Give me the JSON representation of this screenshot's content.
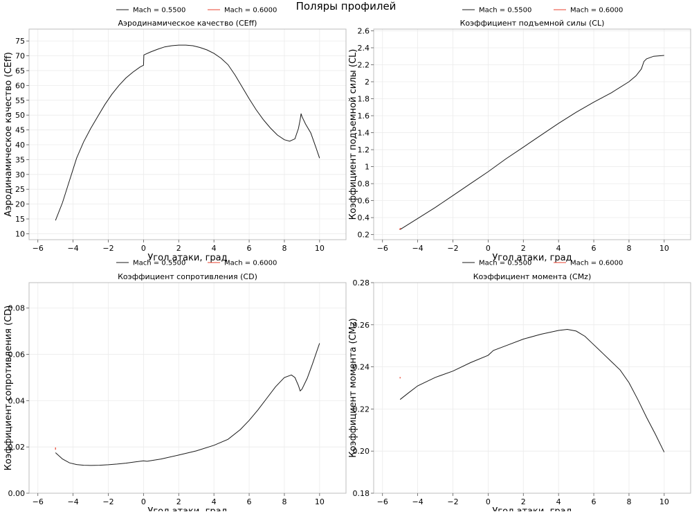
{
  "figure_title": "Поляры профилей",
  "legend": {
    "entries": [
      {
        "label": "Mach = 0.5500",
        "color": "#1a1a1a"
      },
      {
        "label": "Mach = 0.6000",
        "color": "#e8412c"
      }
    ]
  },
  "chart_data": [
    {
      "type": "line",
      "title": "Аэродинамическое качество (CEff)",
      "xlabel": "Угол атаки, град",
      "ylabel": "Аэродинамическое качество (CEff)",
      "xlim": [
        -6.5,
        11.5
      ],
      "ylim": [
        8,
        79
      ],
      "xticks": [
        -6,
        -4,
        -2,
        0,
        2,
        4,
        6,
        8,
        10
      ],
      "yticks": [
        10,
        15,
        20,
        25,
        30,
        35,
        40,
        45,
        50,
        55,
        60,
        65,
        70,
        75
      ],
      "grid": true,
      "legend_position": "top-center",
      "series": [
        {
          "name": "Mach = 0.5500",
          "color": "#1a1a1a",
          "x": [
            -5,
            -4.6,
            -4.2,
            -3.8,
            -3.4,
            -3.0,
            -2.6,
            -2.2,
            -1.8,
            -1.4,
            -1.0,
            -0.6,
            -0.2,
            0.0,
            0.02,
            0.4,
            0.8,
            1.2,
            1.6,
            2.0,
            2.4,
            2.8,
            3.2,
            3.6,
            4.0,
            4.4,
            4.8,
            5.2,
            5.6,
            6.0,
            6.4,
            6.8,
            7.2,
            7.6,
            8.0,
            8.3,
            8.6,
            8.8,
            8.9,
            8.95,
            9.0,
            9.2,
            9.5,
            9.8,
            10.0
          ],
          "y": [
            14.5,
            20.5,
            28.0,
            35.5,
            41.0,
            45.5,
            49.5,
            53.5,
            57.0,
            60.0,
            62.5,
            64.5,
            66.2,
            66.8,
            70.3,
            71.3,
            72.2,
            73.0,
            73.4,
            73.6,
            73.6,
            73.4,
            72.8,
            72.0,
            70.8,
            69.2,
            67.0,
            63.5,
            59.5,
            55.5,
            51.8,
            48.5,
            45.7,
            43.3,
            41.7,
            41.2,
            42.0,
            45.5,
            48.5,
            50.5,
            49.5,
            47.0,
            44.0,
            39.0,
            35.5
          ]
        },
        {
          "name": "Mach = 0.6000",
          "color": "#e8412c",
          "x": [],
          "y": []
        }
      ]
    },
    {
      "type": "line",
      "title": "Коэффициент подъемной силы (CL)",
      "xlabel": "Угол атаки, град",
      "ylabel": "Коэффициент подъемной силы (CL)",
      "xlim": [
        -6.5,
        11.5
      ],
      "ylim": [
        0.14,
        2.62
      ],
      "xticks": [
        -6,
        -4,
        -2,
        0,
        2,
        4,
        6,
        8,
        10
      ],
      "yticks": [
        0.2,
        0.4,
        0.6,
        0.8,
        1.0,
        1.2,
        1.4,
        1.6,
        1.8,
        2.0,
        2.2,
        2.4,
        2.6
      ],
      "grid": true,
      "legend_position": "top-center",
      "series": [
        {
          "name": "Mach = 0.5500",
          "color": "#1a1a1a",
          "x": [
            -5,
            -4,
            -3,
            -2,
            -1,
            0,
            1,
            2,
            3,
            4,
            5,
            6,
            7,
            8,
            8.4,
            8.7,
            8.85,
            9.0,
            9.4,
            10.0
          ],
          "y": [
            0.26,
            0.39,
            0.52,
            0.66,
            0.8,
            0.94,
            1.09,
            1.23,
            1.37,
            1.51,
            1.64,
            1.76,
            1.87,
            2.0,
            2.07,
            2.15,
            2.24,
            2.27,
            2.3,
            2.31
          ]
        },
        {
          "name": "Mach = 0.6000",
          "color": "#e8412c",
          "x": [
            -5.05,
            -4.95
          ],
          "y": [
            0.26,
            0.275
          ]
        }
      ]
    },
    {
      "type": "line",
      "title": "Коэффициент сопротивления (CD)",
      "xlabel": "Угол атаки, град",
      "ylabel": "Коэффициент сопротивления (CD)",
      "xlim": [
        -6.5,
        11.5
      ],
      "ylim": [
        0.0,
        0.091
      ],
      "xticks": [
        -6,
        -4,
        -2,
        0,
        2,
        4,
        6,
        8,
        10
      ],
      "yticks": [
        0.0,
        0.02,
        0.04,
        0.06,
        0.08
      ],
      "ytick_labels": [
        "0.00",
        "0.02",
        "0.04",
        "0.06",
        "0.08"
      ],
      "grid": true,
      "legend_position": "top-center",
      "series": [
        {
          "name": "Mach = 0.5500",
          "color": "#1a1a1a",
          "x": [
            -5,
            -4.6,
            -4.2,
            -3.8,
            -3.4,
            -3.0,
            -2.5,
            -2.0,
            -1.5,
            -1.0,
            -0.5,
            0.0,
            0.2,
            1.0,
            2.0,
            3.0,
            4.0,
            4.8,
            5.5,
            6.0,
            6.5,
            7.0,
            7.5,
            8.0,
            8.4,
            8.6,
            8.8,
            8.9,
            9.0,
            9.3,
            9.6,
            10.0
          ],
          "y": [
            0.0175,
            0.0148,
            0.0131,
            0.0124,
            0.0121,
            0.012,
            0.0121,
            0.0123,
            0.0126,
            0.013,
            0.0135,
            0.014,
            0.0138,
            0.0148,
            0.0165,
            0.0183,
            0.0207,
            0.0233,
            0.0275,
            0.0315,
            0.036,
            0.041,
            0.046,
            0.05,
            0.0511,
            0.05,
            0.0465,
            0.0442,
            0.045,
            0.0497,
            0.056,
            0.0648
          ]
        },
        {
          "name": "Mach = 0.6000",
          "color": "#e8412c",
          "x": [
            -5.0,
            -5.0
          ],
          "y": [
            0.0188,
            0.0198
          ]
        }
      ]
    },
    {
      "type": "line",
      "title": "Коэффициент момента (CMz)",
      "xlabel": "Угол атаки, град",
      "ylabel": "Коэффициент момента (CMz)",
      "xlim": [
        -6.5,
        11.5
      ],
      "ylim": [
        0.18,
        0.28
      ],
      "xticks": [
        -6,
        -4,
        -2,
        0,
        2,
        4,
        6,
        8,
        10
      ],
      "yticks": [
        0.18,
        0.2,
        0.22,
        0.24,
        0.26,
        0.28
      ],
      "ytick_labels": [
        "0.18",
        "0.20",
        "0.22",
        "0.24",
        "0.26",
        "0.28"
      ],
      "grid": true,
      "legend_position": "top-center",
      "series": [
        {
          "name": "Mach = 0.5500",
          "color": "#1a1a1a",
          "x": [
            -5,
            -4.5,
            -4.0,
            -3.5,
            -3.0,
            -2.0,
            -1.0,
            0.0,
            0.3,
            1.0,
            2.0,
            3.0,
            4.0,
            4.5,
            5.0,
            5.5,
            6.0,
            6.5,
            7.0,
            7.5,
            8.0,
            8.5,
            9.0,
            9.5,
            10.0
          ],
          "y": [
            0.2245,
            0.2278,
            0.231,
            0.233,
            0.235,
            0.238,
            0.242,
            0.2455,
            0.2478,
            0.25,
            0.2532,
            0.2555,
            0.2573,
            0.2578,
            0.257,
            0.2545,
            0.2505,
            0.2465,
            0.2425,
            0.2385,
            0.2325,
            0.2245,
            0.216,
            0.208,
            0.1995
          ]
        },
        {
          "name": "Mach = 0.6000",
          "color": "#e8412c",
          "x": [
            -5.0,
            -5.0
          ],
          "y": [
            0.2345,
            0.2352
          ]
        }
      ]
    }
  ]
}
